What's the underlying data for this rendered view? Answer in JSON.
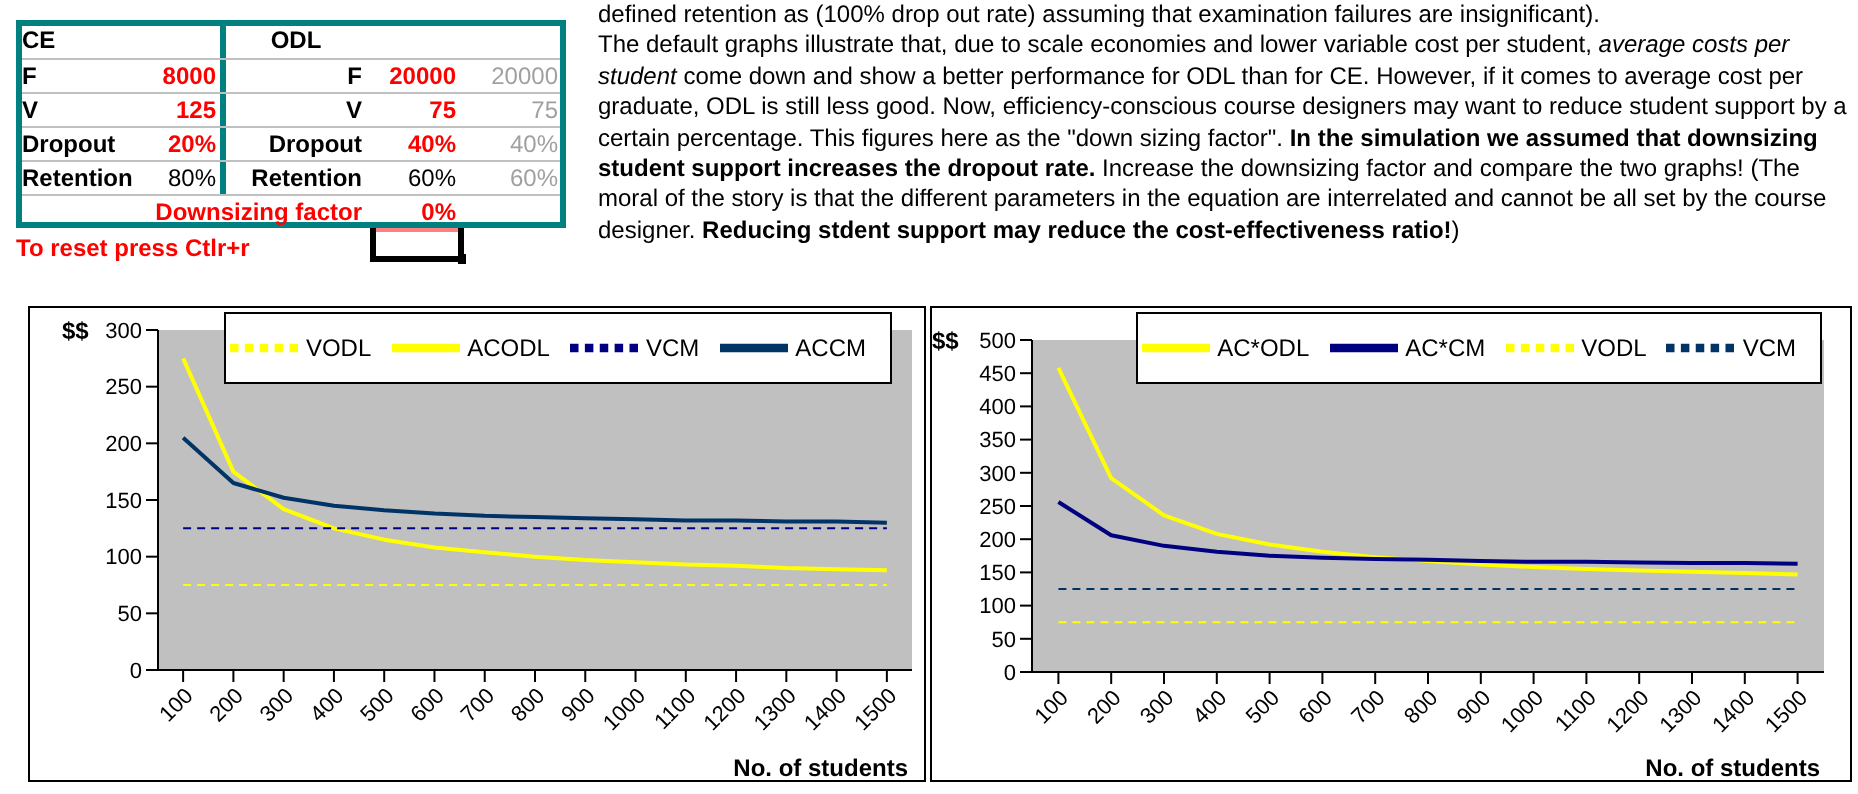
{
  "chart_data": [
    {
      "type": "other",
      "annotations": [
        "CE",
        "ODL",
        "F",
        "8000",
        "F",
        "20000",
        "20000",
        "V",
        "125",
        "V",
        "75",
        "75",
        "Dropout",
        "20%",
        "Dropout",
        "40%",
        "40%",
        "Retention",
        "80%",
        "Retention",
        "60%",
        "60%",
        "Downsizing factor",
        "0%",
        "To reset press Ctlr+r",
        "defined retention as (100% drop out rate) assuming that examination failures are insignificant).",
        "The default graphs illustrate that, due to scale economies and lower variable cost per student, ",
        "average costs per student",
        " come down and show a better performance for ODL than for CE. However, if it comes to average cost per graduate, ODL is still less good. Now, efficiency-conscious course designers may want to reduce student support by a certain percentage. This figures here as the \"down sizing factor\". ",
        "In the simulation we assumed that downsizing student support increases the dropout rate.",
        "  Increase the downsizing factor and compare the two graphs! (The moral of the story is that the different parameters in the equation are interrelated and cannot be all set by the course designer. ",
        "Reducing stdent support may reduce the cost-effectiveness ratio!",
        ")"
      ]
    },
    {
      "type": "line",
      "ylabel": "$$",
      "xlabel": "No. of students",
      "categories": [
        "100",
        "200",
        "300",
        "400",
        "500",
        "600",
        "700",
        "800",
        "900",
        "1000",
        "1100",
        "1200",
        "1300",
        "1400",
        "1500"
      ],
      "ylim": [
        0,
        300
      ],
      "yticks": [
        0,
        50,
        100,
        150,
        200,
        250,
        300
      ],
      "grid": false,
      "legend": "top right",
      "marker": "none",
      "series": [
        {
          "name": "VODL",
          "color": "#ffff00",
          "line_style": "dashed",
          "values": [
            75,
            75,
            75,
            75,
            75,
            75,
            75,
            75,
            75,
            75,
            75,
            75,
            75,
            75,
            75
          ]
        },
        {
          "name": "ACODL",
          "color": "#ffff00",
          "line_style": "solid",
          "values": [
            275,
            175,
            142,
            125,
            115,
            108,
            104,
            100,
            97,
            95,
            93,
            92,
            90,
            89,
            88
          ]
        },
        {
          "name": "VCM",
          "color": "#000080",
          "line_style": "dashed",
          "values": [
            125,
            125,
            125,
            125,
            125,
            125,
            125,
            125,
            125,
            125,
            125,
            125,
            125,
            125,
            125
          ]
        },
        {
          "name": "ACCM",
          "color": "#003366",
          "line_style": "solid",
          "values": [
            205,
            165,
            152,
            145,
            141,
            138,
            136,
            135,
            134,
            133,
            132,
            132,
            131,
            131,
            130
          ]
        }
      ]
    },
    {
      "type": "line",
      "ylabel": "$$",
      "xlabel": "No. of students",
      "categories": [
        "100",
        "200",
        "300",
        "400",
        "500",
        "600",
        "700",
        "800",
        "900",
        "1000",
        "1100",
        "1200",
        "1300",
        "1400",
        "1500"
      ],
      "ylim": [
        0,
        500
      ],
      "yticks": [
        0,
        50,
        100,
        150,
        200,
        250,
        300,
        350,
        400,
        450,
        500
      ],
      "grid": false,
      "legend": "top right",
      "marker": "none",
      "series": [
        {
          "name": "AC*ODL",
          "color": "#ffff00",
          "line_style": "solid",
          "values": [
            458,
            292,
            236,
            208,
            192,
            181,
            173,
            167,
            162,
            158,
            155,
            153,
            151,
            149,
            147
          ]
        },
        {
          "name": "AC*CM",
          "color": "#000080",
          "line_style": "solid",
          "values": [
            256,
            206,
            190,
            181,
            175,
            172,
            170,
            169,
            167,
            166,
            166,
            165,
            164,
            164,
            163
          ]
        },
        {
          "name": "VODL",
          "color": "#ffff00",
          "line_style": "dashed",
          "values": [
            75,
            75,
            75,
            75,
            75,
            75,
            75,
            75,
            75,
            75,
            75,
            75,
            75,
            75,
            75
          ]
        },
        {
          "name": "VCM",
          "color": "#003366",
          "line_style": "dashed",
          "values": [
            125,
            125,
            125,
            125,
            125,
            125,
            125,
            125,
            125,
            125,
            125,
            125,
            125,
            125,
            125
          ]
        }
      ]
    }
  ]
}
